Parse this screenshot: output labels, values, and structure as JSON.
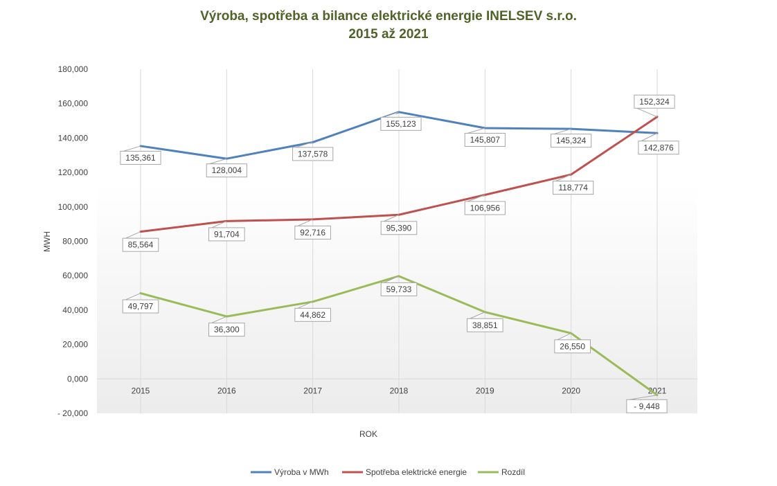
{
  "chart_data": {
    "type": "line",
    "title_line1": "Výroba, spotřeba a bilance elektrické energie INELSEV s.r.o.",
    "title_line2": "2015 až 2021",
    "title_color": "#4f6228",
    "xlabel": "ROK",
    "ylabel": "MWH",
    "ylim": [
      -20000,
      180000
    ],
    "y_ticks": [
      {
        "value": 180000,
        "label": "180,000"
      },
      {
        "value": 160000,
        "label": "160,000"
      },
      {
        "value": 140000,
        "label": "140,000"
      },
      {
        "value": 120000,
        "label": "120,000"
      },
      {
        "value": 100000,
        "label": "100,000"
      },
      {
        "value": 80000,
        "label": "80,000"
      },
      {
        "value": 60000,
        "label": "60,000"
      },
      {
        "value": 40000,
        "label": "40,000"
      },
      {
        "value": 20000,
        "label": "20,000"
      },
      {
        "value": 0,
        "label": "0,000"
      },
      {
        "value": -20000,
        "label": "- 20,000"
      }
    ],
    "categories": [
      "2015",
      "2016",
      "2017",
      "2018",
      "2019",
      "2020",
      "2021"
    ],
    "grid": "vertical",
    "legend_position": "bottom",
    "series": [
      {
        "name": "Výroba v MWh",
        "color": "#4f81bd",
        "values": [
          135361,
          128004,
          137578,
          155123,
          145807,
          145324,
          142876
        ],
        "labels": [
          "135,361",
          "128,004",
          "137,578",
          "155,123",
          "145,807",
          "145,324",
          "142,876"
        ]
      },
      {
        "name": "Spotřeba elektrické energie",
        "color": "#c0504d",
        "values": [
          85564,
          91704,
          92716,
          95390,
          106956,
          118774,
          152324
        ],
        "labels": [
          "85,564",
          "91,704",
          "92,716",
          "95,390",
          "106,956",
          "118,774",
          "152,324"
        ]
      },
      {
        "name": "Rozdíl",
        "color": "#9bbb59",
        "values": [
          49797,
          36300,
          44862,
          59733,
          38851,
          26550,
          -9448
        ],
        "labels": [
          "49,797",
          "36,300",
          "44,862",
          "59,733",
          "38,851",
          "26,550",
          "- 9,448"
        ]
      }
    ]
  }
}
